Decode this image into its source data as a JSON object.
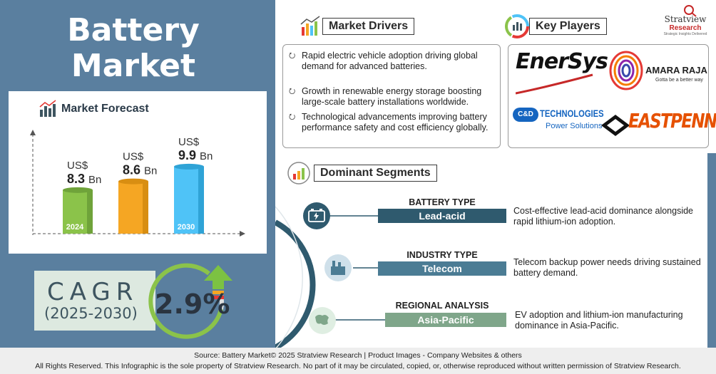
{
  "title_line1": "Battery",
  "title_line2": "Market",
  "forecast": {
    "label": "Market Forecast"
  },
  "chart_data": {
    "type": "bar",
    "categories": [
      "2024",
      "",
      "2030"
    ],
    "values": [
      8.3,
      8.6,
      9.9
    ],
    "value_prefix": "US$",
    "value_suffix": "Bn",
    "data_labels": [
      "8.3",
      "8.6",
      "9.9"
    ],
    "ylim": [
      0,
      12
    ],
    "grid": false,
    "colors": [
      "#8bc34a",
      "#f5a623",
      "#4fc3f7"
    ]
  },
  "cagr": {
    "word": "CAGR",
    "years": "(2025-2030)",
    "value": "2.9%"
  },
  "drivers": {
    "label": "Market Drivers",
    "items": [
      "Rapid electric vehicle adoption driving global demand for advanced batteries.",
      "Growth in renewable energy storage boosting large-scale battery installations worldwide.",
      "Technological advancements improving battery performance safety and cost efficiency globally."
    ]
  },
  "players": {
    "label": "Key Players",
    "enersys": "EnerSys",
    "amara_name": "AMARA RAJA",
    "amara_tag": "Gotta be a better way",
    "cd_name": "TECHNOLOGIES",
    "cd_sub": "Power Solutions",
    "cd_mark": "C&D",
    "eastpenn": "EASTPENN"
  },
  "brand": {
    "name": "Stratview",
    "sub": "Research",
    "tagline": "Strategic Insights Delivered"
  },
  "segments": {
    "label": "Dominant Segments",
    "items": [
      {
        "heading": "BATTERY TYPE",
        "value": "Lead-acid",
        "desc": "Cost-effective lead-acid dominance alongside rapid lithium-ion adoption."
      },
      {
        "heading": "INDUSTRY TYPE",
        "value": "Telecom",
        "desc": "Telecom backup power needs driving sustained battery demand."
      },
      {
        "heading": "REGIONAL ANALYSIS",
        "value": "Asia-Pacific",
        "desc": "EV adoption and lithium-ion manufacturing dominance in Asia-Pacific."
      }
    ]
  },
  "footer": {
    "line1": "Source: Battery Market© 2025 Stratview Research | Product Images  - Company Websites & others",
    "line2": "All Rights Reserved. This Infographic is the sole property of Stratview Research. No part of it may be circulated, copied, or, otherwise reproduced without written permission of Stratview Research."
  },
  "colors": {
    "panel": "#5a7f9f",
    "seg1": "#2f5a6e",
    "seg2": "#4b7c94",
    "seg3": "#7fa68a"
  }
}
